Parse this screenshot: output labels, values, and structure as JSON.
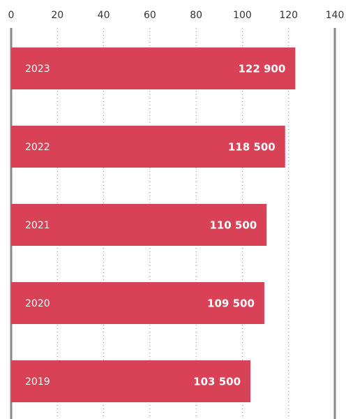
{
  "chart_data": {
    "type": "bar",
    "orientation": "horizontal",
    "categories": [
      "2023",
      "2022",
      "2021",
      "2020",
      "2019"
    ],
    "values": [
      122.9,
      118.5,
      110.5,
      109.5,
      103.5
    ],
    "value_labels": [
      "122 900",
      "118 500",
      "110 500",
      "109 500",
      "103 500"
    ],
    "color": "#d94156",
    "xlim": [
      0,
      140
    ],
    "xticks": [
      0,
      20,
      40,
      60,
      80,
      100,
      120,
      140
    ],
    "grid": true
  }
}
